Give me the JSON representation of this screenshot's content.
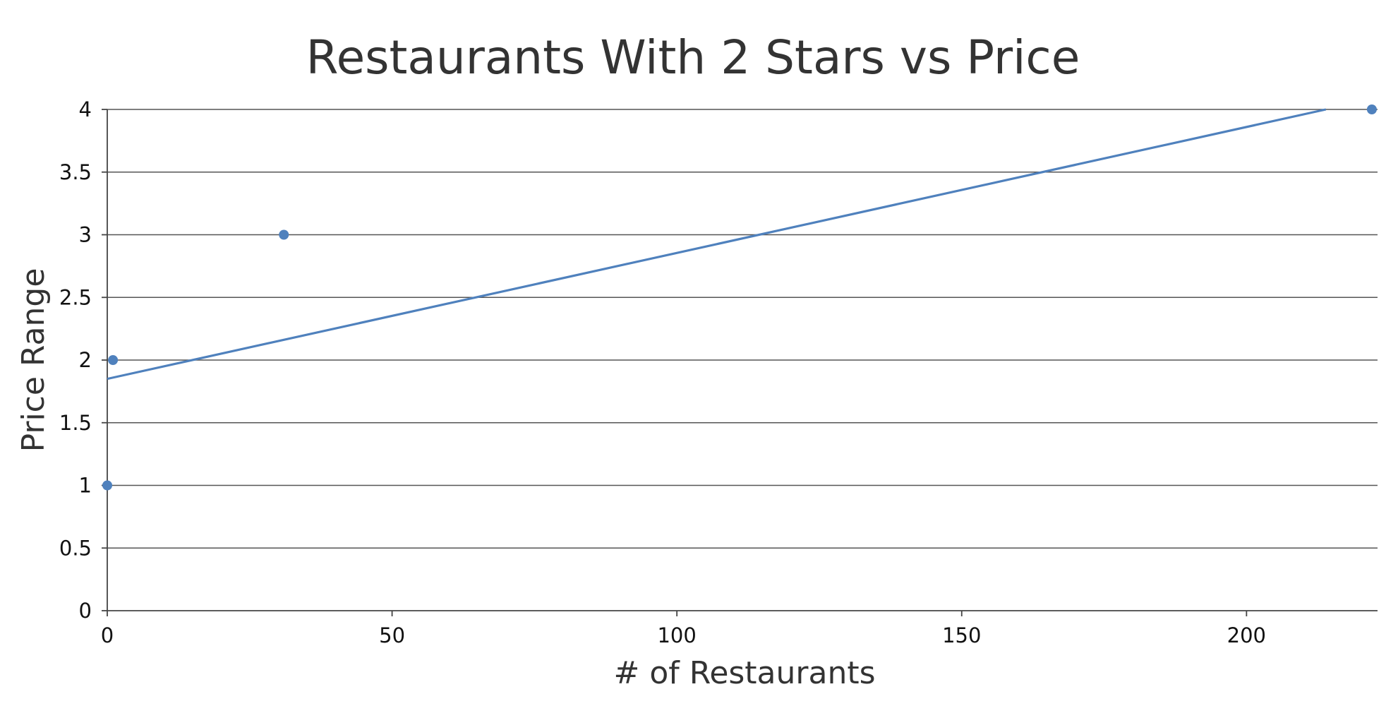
{
  "chart_data": {
    "type": "scatter",
    "title": "Restaurants With 2 Stars vs Price",
    "xlabel": "# of Restaurants",
    "ylabel": "Price Range",
    "xlim": [
      0,
      223
    ],
    "ylim": [
      0,
      4
    ],
    "x_ticks": [
      0,
      50,
      100,
      150,
      200
    ],
    "y_ticks": [
      0,
      0.5,
      1,
      1.5,
      2,
      2.5,
      3,
      3.5,
      4
    ],
    "grid": true,
    "legend": "none",
    "series": [
      {
        "points": [
          {
            "x": 0,
            "y": 1
          },
          {
            "x": 1,
            "y": 2
          },
          {
            "x": 31,
            "y": 3
          },
          {
            "x": 222,
            "y": 4
          }
        ],
        "color": "#4f81bd"
      }
    ],
    "trendline": {
      "kind": "linear",
      "slope": 0.01005,
      "intercept": 1.85,
      "color": "#4f81bd"
    }
  }
}
